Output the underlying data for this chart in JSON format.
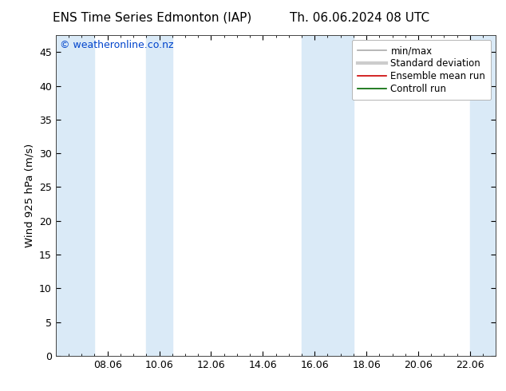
{
  "title_left": "ENS Time Series Edmonton (IAP)",
  "title_right": "Th. 06.06.2024 08 UTC",
  "ylabel": "Wind 925 hPa (m/s)",
  "watermark": "© weatheronline.co.nz",
  "watermark_color": "#0044cc",
  "ylim": [
    0,
    47.5
  ],
  "yticks": [
    0,
    5,
    10,
    15,
    20,
    25,
    30,
    35,
    40,
    45
  ],
  "xtick_labels": [
    "08.06",
    "10.06",
    "12.06",
    "14.06",
    "16.06",
    "18.06",
    "20.06",
    "22.06"
  ],
  "xtick_positions": [
    2,
    4,
    6,
    8,
    10,
    12,
    14,
    16
  ],
  "xlim": [
    0,
    17
  ],
  "shade_bands": [
    [
      0,
      1.5
    ],
    [
      3.5,
      4.5
    ],
    [
      9.5,
      11.5
    ],
    [
      16,
      17
    ]
  ],
  "shade_color": "#daeaf7",
  "bg_color": "#ffffff",
  "plot_bg_color": "#ffffff",
  "legend_labels": [
    "min/max",
    "Standard deviation",
    "Ensemble mean run",
    "Controll run"
  ],
  "legend_colors": [
    "#888888",
    "#bbbbbb",
    "#cc0000",
    "#006600"
  ],
  "title_fontsize": 11,
  "axis_fontsize": 9.5,
  "tick_fontsize": 9,
  "watermark_fontsize": 9,
  "legend_fontsize": 8.5
}
